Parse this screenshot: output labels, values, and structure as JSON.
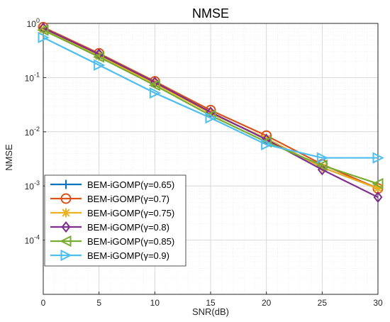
{
  "chart_data": {
    "type": "line",
    "title": "NMSE",
    "xlabel": "SNR(dB)",
    "ylabel": "NMSE",
    "x": [
      0,
      5,
      10,
      15,
      20,
      25,
      30
    ],
    "xlim": [
      0,
      30
    ],
    "ylim": [
      1e-05,
      1
    ],
    "y_scale": "log",
    "grid": true,
    "minor_grid": true,
    "legend_position": "bottom-left",
    "x_ticks": [
      "0",
      "5",
      "10",
      "15",
      "20",
      "25",
      "30"
    ],
    "y_ticks": [
      {
        "base": "10",
        "exp": "0",
        "value": 1
      },
      {
        "base": "10",
        "exp": "-1",
        "value": 0.1
      },
      {
        "base": "10",
        "exp": "-2",
        "value": 0.01
      },
      {
        "base": "10",
        "exp": "-3",
        "value": 0.001
      },
      {
        "base": "10",
        "exp": "-4",
        "value": 0.0001
      }
    ],
    "series": [
      {
        "name": "BEM-iGOMP(γ=0.65)",
        "color": "#0072BD",
        "marker": "plus",
        "values": [
          0.8,
          0.26,
          0.08,
          0.022,
          0.0075,
          0.0022,
          0.0009
        ]
      },
      {
        "name": "BEM-iGOMP(γ=0.7)",
        "color": "#D95319",
        "marker": "circle",
        "values": [
          0.85,
          0.28,
          0.085,
          0.025,
          0.0085,
          0.0025,
          0.0009
        ]
      },
      {
        "name": "BEM-iGOMP(γ=0.75)",
        "color": "#EDB120",
        "marker": "asterisk",
        "values": [
          0.78,
          0.25,
          0.078,
          0.022,
          0.0075,
          0.0022,
          0.0009
        ]
      },
      {
        "name": "BEM-iGOMP(γ=0.8)",
        "color": "#7E2F8E",
        "marker": "diamond",
        "values": [
          0.82,
          0.27,
          0.082,
          0.023,
          0.0072,
          0.002,
          0.00062
        ]
      },
      {
        "name": "BEM-iGOMP(γ=0.85)",
        "color": "#77AC30",
        "marker": "triangle-left",
        "values": [
          0.75,
          0.24,
          0.072,
          0.02,
          0.0065,
          0.0024,
          0.0011
        ]
      },
      {
        "name": "BEM-iGOMP(γ=0.9)",
        "color": "#4DBEEE",
        "marker": "triangle-right",
        "values": [
          0.55,
          0.17,
          0.052,
          0.018,
          0.0058,
          0.0033,
          0.0033
        ]
      }
    ]
  }
}
